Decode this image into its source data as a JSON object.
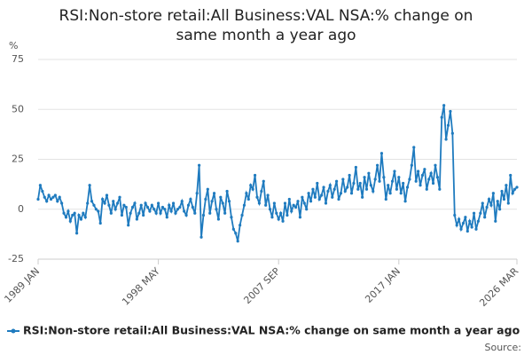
{
  "chart_data": {
    "type": "line",
    "title": [
      "RSI:Non-store retail:All Business:VAL NSA:% change on",
      "same month a year ago"
    ],
    "ylabel": "%",
    "source": "Source:",
    "categories": [
      "1989 JAN",
      null,
      null,
      null,
      null,
      null,
      null,
      null,
      null,
      null,
      null,
      null,
      null,
      null,
      null,
      null,
      null,
      null,
      null,
      null,
      null,
      null,
      null,
      null,
      null,
      null,
      null,
      null,
      null,
      null,
      null,
      null,
      null,
      null,
      null,
      null,
      null,
      null,
      null,
      null,
      null,
      null,
      null,
      null,
      null,
      null,
      null,
      null,
      null,
      null,
      null,
      null,
      null,
      null,
      null,
      null,
      "1998 MAY",
      null,
      null,
      null,
      null,
      null,
      null,
      null,
      null,
      null,
      null,
      null,
      null,
      null,
      null,
      null,
      null,
      null,
      null,
      null,
      null,
      null,
      null,
      null,
      null,
      null,
      null,
      null,
      null,
      null,
      null,
      null,
      null,
      null,
      null,
      null,
      null,
      null,
      null,
      null,
      null,
      null,
      null,
      null,
      null,
      null,
      null,
      null,
      null,
      null,
      null,
      null,
      null,
      null,
      null,
      null,
      "2007 SEP",
      null,
      null,
      null,
      null,
      null,
      null,
      null,
      null,
      null,
      null,
      null,
      null,
      null,
      null,
      null,
      null,
      null,
      null,
      null,
      null,
      null,
      null,
      null,
      null,
      null,
      null,
      null,
      null,
      null,
      null,
      null,
      null,
      null,
      null,
      null,
      null,
      null,
      null,
      null,
      null,
      null,
      null,
      null,
      null,
      null,
      null,
      null,
      null,
      null,
      null,
      null,
      null,
      null,
      null,
      null,
      "2017 JAN",
      null,
      null,
      null,
      null,
      null,
      null,
      null,
      null,
      null,
      null,
      null,
      null,
      null,
      null,
      null,
      null,
      null,
      null,
      null,
      null,
      null,
      null,
      null,
      null,
      null,
      null,
      null,
      null,
      null,
      null,
      null,
      null,
      null,
      null,
      null,
      null,
      null,
      null,
      null,
      null,
      null,
      null,
      null,
      null,
      null,
      null,
      null,
      null,
      null,
      null,
      null,
      null,
      null,
      null,
      "2026 MAR"
    ],
    "series": [
      {
        "name": "RSI:Non-store retail:All Business:VAL NSA:% change on same month a year ago",
        "color": "#1f7bbf",
        "values": [
          5,
          12,
          9,
          6,
          4,
          7,
          5,
          6,
          7,
          4,
          6,
          3,
          -2,
          -4,
          -1,
          -6,
          -3,
          -2,
          -12,
          -3,
          -5,
          -2,
          -4,
          3,
          12,
          4,
          2,
          0,
          -1,
          -7,
          5,
          3,
          7,
          2,
          -2,
          4,
          0,
          3,
          6,
          -3,
          2,
          1,
          -8,
          -2,
          1,
          3,
          -5,
          -2,
          2,
          -3,
          3,
          1,
          -1,
          2,
          0,
          -2,
          3,
          -2,
          1,
          0,
          -4,
          2,
          -1,
          3,
          -2,
          0,
          1,
          4,
          -1,
          -3,
          2,
          5,
          1,
          -2,
          8,
          22,
          -14,
          -3,
          5,
          10,
          -2,
          4,
          8,
          0,
          -5,
          6,
          3,
          -2,
          9,
          4,
          -4,
          -10,
          -12,
          -16,
          -8,
          -3,
          2,
          8,
          5,
          12,
          10,
          17,
          6,
          3,
          9,
          14,
          2,
          7,
          0,
          -4,
          3,
          -2,
          -5,
          -2,
          -6,
          3,
          -3,
          5,
          -1,
          2,
          1,
          4,
          -4,
          6,
          3,
          0,
          8,
          4,
          10,
          6,
          13,
          5,
          7,
          11,
          3,
          9,
          12,
          6,
          10,
          14,
          5,
          8,
          15,
          9,
          11,
          17,
          8,
          13,
          21,
          10,
          13,
          6,
          16,
          10,
          18,
          12,
          9,
          15,
          22,
          14,
          28,
          16,
          5,
          12,
          8,
          14,
          19,
          10,
          16,
          8,
          13,
          4,
          11,
          15,
          22,
          31,
          14,
          19,
          12,
          17,
          20,
          10,
          15,
          18,
          13,
          22,
          16,
          10,
          46,
          52,
          35,
          42,
          49,
          38,
          -3,
          -8,
          -5,
          -10,
          -7,
          -4,
          -11,
          -6,
          -9,
          -2,
          -10,
          -6,
          -2,
          3,
          -4,
          1,
          5,
          2,
          8,
          -6,
          4,
          0,
          9,
          5,
          12,
          3,
          17,
          8,
          10,
          11
        ]
      }
    ],
    "ylim": [
      -25,
      75
    ],
    "yticks": [
      -25,
      0,
      25,
      50,
      75
    ],
    "grid": true
  }
}
